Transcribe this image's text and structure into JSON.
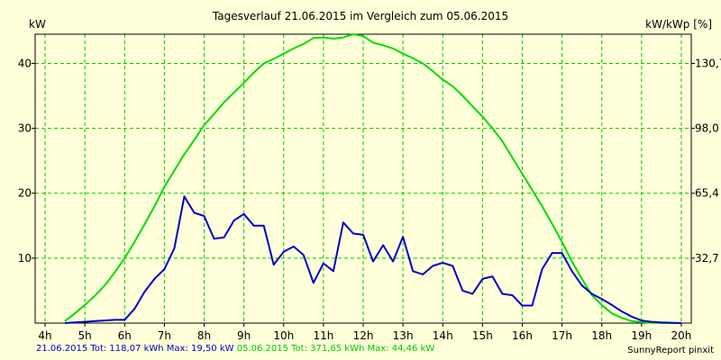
{
  "colors": {
    "background": "#FFFFD9",
    "grid": "#00C800",
    "series_day": "#0000C8",
    "series_ref": "#00DD00"
  },
  "chart_data": {
    "type": "line",
    "title": "Tagesverlauf 21.06.2015 im Vergleich zum 05.06.2015",
    "ylabel": "kW",
    "y2label": "kW/kWp [%]",
    "xlim": [
      3.75,
      20.25
    ],
    "ylim": [
      0,
      44.5
    ],
    "x_ticks": [
      4,
      5,
      6,
      7,
      8,
      9,
      10,
      11,
      12,
      13,
      14,
      15,
      16,
      17,
      18,
      19,
      20
    ],
    "x_tick_labels": [
      "4h",
      "5h",
      "6h",
      "7h",
      "8h",
      "9h",
      "10h",
      "11h",
      "12h",
      "13h",
      "14h",
      "15h",
      "16h",
      "17h",
      "18h",
      "19h",
      "20h"
    ],
    "y_ticks": [
      10,
      20,
      30,
      40
    ],
    "y_tick_labels": [
      "10",
      "20",
      "30",
      "40"
    ],
    "y2_ticks": [
      10,
      20,
      30,
      40
    ],
    "y2_tick_labels": [
      "32,7",
      "65,4",
      "98,0",
      "130,7"
    ],
    "grid": true,
    "series": [
      {
        "name": "21.06.2015",
        "color": "#0000C8",
        "x": [
          4.5,
          4.75,
          5,
          5.25,
          5.5,
          5.75,
          6,
          6.25,
          6.5,
          6.75,
          7,
          7.25,
          7.5,
          7.75,
          8,
          8.25,
          8.5,
          8.75,
          9,
          9.25,
          9.5,
          9.75,
          10,
          10.25,
          10.5,
          10.75,
          11,
          11.25,
          11.5,
          11.75,
          12,
          12.25,
          12.5,
          12.75,
          13,
          13.25,
          13.5,
          13.75,
          14,
          14.25,
          14.5,
          14.75,
          15,
          15.25,
          15.5,
          15.75,
          16,
          16.25,
          16.5,
          16.75,
          17,
          17.25,
          17.5,
          17.75,
          18,
          18.25,
          18.5,
          18.75,
          19,
          19.25,
          19.5,
          19.75,
          20
        ],
        "y": [
          0.0,
          0.1,
          0.2,
          0.3,
          0.4,
          0.5,
          0.5,
          2.2,
          4.8,
          6.8,
          8.3,
          11.5,
          19.5,
          17.0,
          16.5,
          13.0,
          13.2,
          15.8,
          16.8,
          15.0,
          15.0,
          9.0,
          11.0,
          11.8,
          10.5,
          6.2,
          9.2,
          8.0,
          15.5,
          13.8,
          13.6,
          9.5,
          12.0,
          9.5,
          13.3,
          8.0,
          7.5,
          8.8,
          9.3,
          8.8,
          5.0,
          4.5,
          6.8,
          7.2,
          4.5,
          4.3,
          2.7,
          2.7,
          8.3,
          10.8,
          10.8,
          8.0,
          5.8,
          4.5,
          3.7,
          2.8,
          1.8,
          1.0,
          0.4,
          0.2,
          0.1,
          0.05,
          0.0
        ]
      },
      {
        "name": "05.06.2015",
        "color": "#00DD00",
        "x": [
          4.5,
          4.75,
          5,
          5.25,
          5.5,
          5.75,
          6,
          6.25,
          6.5,
          6.75,
          7,
          7.25,
          7.5,
          7.75,
          8,
          8.25,
          8.5,
          8.75,
          9,
          9.25,
          9.5,
          9.75,
          10,
          10.25,
          10.5,
          10.75,
          11,
          11.25,
          11.5,
          11.75,
          12,
          12.25,
          12.5,
          12.75,
          13,
          13.25,
          13.5,
          13.75,
          14,
          14.25,
          14.5,
          14.75,
          15,
          15.25,
          15.5,
          15.75,
          16,
          16.25,
          16.5,
          16.75,
          17,
          17.25,
          17.5,
          17.75,
          18,
          18.25,
          18.5,
          18.75,
          19,
          19.25,
          19.5,
          19.75,
          20
        ],
        "y": [
          0.3,
          1.5,
          2.8,
          4.2,
          5.8,
          7.8,
          10.0,
          12.5,
          15.2,
          18.0,
          21.0,
          23.5,
          26.0,
          28.2,
          30.5,
          32.2,
          34.0,
          35.5,
          37.0,
          38.6,
          40.0,
          40.7,
          41.5,
          42.3,
          43.0,
          43.9,
          44.0,
          43.8,
          44.0,
          44.5,
          44.2,
          43.2,
          42.8,
          42.3,
          41.5,
          40.8,
          40.0,
          38.8,
          37.5,
          36.5,
          35.0,
          33.4,
          31.8,
          30.0,
          28.0,
          25.5,
          23.0,
          20.5,
          18.0,
          15.3,
          12.5,
          9.5,
          6.8,
          4.3,
          2.8,
          1.5,
          0.8,
          0.3,
          0.15,
          0.05,
          0.0,
          0.0,
          0.0
        ]
      }
    ]
  },
  "footer": {
    "series1_label": "21.06.2015 Tot: 118,07 kWh Max: 19,50 kW",
    "series2_label": "05.06.2015 Tot: 371,65 kWh Max: 44,46 kW",
    "credit": "SunnyReport pinxit"
  }
}
